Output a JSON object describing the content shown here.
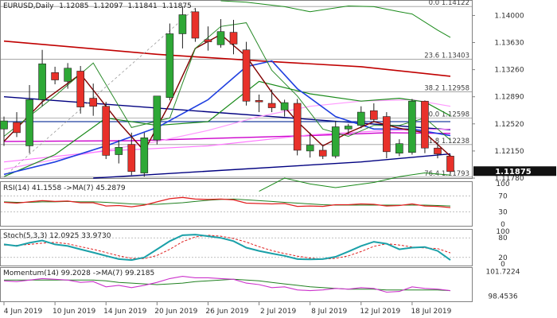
{
  "chart_data": {
    "type": "candlestick",
    "symbol_line": {
      "label": "EURUSD,Daily",
      "open": "1.12085",
      "high": "1.12097",
      "low": "1.11841",
      "close": "1.11875"
    },
    "price_axis": {
      "ylim": [
        1.1178,
        1.142
      ],
      "ticks": [
        "1.14000",
        "1.13630",
        "1.13260",
        "1.12890",
        "1.12520",
        "1.12150",
        "1.11780"
      ],
      "current_price": "1.11875"
    },
    "x_ticks": [
      "4 Jun 2019",
      "10 Jun 2019",
      "14 Jun 2019",
      "20 Jun 2019",
      "26 Jun 2019",
      "2 Jul 2019",
      "8 Jul 2019",
      "12 Jul 2019",
      "18 Jul 2019"
    ],
    "fibonacci": [
      {
        "label": "0.0 1.14122",
        "price": 1.14122
      },
      {
        "label": "23.6 1.13403",
        "price": 1.13403
      },
      {
        "label": "38.2 1.12958",
        "price": 1.12958
      },
      {
        "label": "50.0 1.12598",
        "price": 1.12598
      },
      {
        "label": "61.8 1.12238",
        "price": 1.12238
      },
      {
        "label": "76.4 1.11793",
        "price": 1.11793
      }
    ],
    "candles": [
      {
        "o": 1.1245,
        "h": 1.1262,
        "l": 1.1222,
        "c": 1.1256
      },
      {
        "o": 1.1254,
        "h": 1.1268,
        "l": 1.1234,
        "c": 1.124
      },
      {
        "o": 1.1222,
        "h": 1.1305,
        "l": 1.1212,
        "c": 1.1285
      },
      {
        "o": 1.1285,
        "h": 1.1353,
        "l": 1.1276,
        "c": 1.1334
      },
      {
        "o": 1.1322,
        "h": 1.133,
        "l": 1.1306,
        "c": 1.1312
      },
      {
        "o": 1.131,
        "h": 1.1335,
        "l": 1.13,
        "c": 1.1328
      },
      {
        "o": 1.1324,
        "h": 1.1331,
        "l": 1.1266,
        "c": 1.1275
      },
      {
        "o": 1.1287,
        "h": 1.1307,
        "l": 1.1263,
        "c": 1.1276
      },
      {
        "o": 1.1276,
        "h": 1.1282,
        "l": 1.1204,
        "c": 1.1209
      },
      {
        "o": 1.121,
        "h": 1.123,
        "l": 1.1198,
        "c": 1.122
      },
      {
        "o": 1.1224,
        "h": 1.124,
        "l": 1.1182,
        "c": 1.1187
      },
      {
        "o": 1.1185,
        "h": 1.124,
        "l": 1.118,
        "c": 1.1233
      },
      {
        "o": 1.123,
        "h": 1.129,
        "l": 1.1224,
        "c": 1.129
      },
      {
        "o": 1.1288,
        "h": 1.1389,
        "l": 1.1284,
        "c": 1.1375
      },
      {
        "o": 1.1375,
        "h": 1.1412,
        "l": 1.1355,
        "c": 1.1401
      },
      {
        "o": 1.1405,
        "h": 1.141,
        "l": 1.1364,
        "c": 1.1369
      },
      {
        "o": 1.1367,
        "h": 1.1385,
        "l": 1.1352,
        "c": 1.1364
      },
      {
        "o": 1.136,
        "h": 1.1395,
        "l": 1.1356,
        "c": 1.1378
      },
      {
        "o": 1.1377,
        "h": 1.1394,
        "l": 1.1347,
        "c": 1.1361
      },
      {
        "o": 1.1353,
        "h": 1.1364,
        "l": 1.1277,
        "c": 1.1283
      },
      {
        "o": 1.1284,
        "h": 1.1292,
        "l": 1.1268,
        "c": 1.1282
      },
      {
        "o": 1.128,
        "h": 1.1299,
        "l": 1.1268,
        "c": 1.1274
      },
      {
        "o": 1.1271,
        "h": 1.1285,
        "l": 1.1262,
        "c": 1.1281
      },
      {
        "o": 1.128,
        "h": 1.1286,
        "l": 1.1209,
        "c": 1.1216
      },
      {
        "o": 1.1215,
        "h": 1.124,
        "l": 1.1206,
        "c": 1.1223
      },
      {
        "o": 1.1216,
        "h": 1.1223,
        "l": 1.1204,
        "c": 1.1208
      },
      {
        "o": 1.1208,
        "h": 1.1256,
        "l": 1.1205,
        "c": 1.1248
      },
      {
        "o": 1.1245,
        "h": 1.1252,
        "l": 1.1238,
        "c": 1.1249
      },
      {
        "o": 1.125,
        "h": 1.1276,
        "l": 1.1246,
        "c": 1.1268
      },
      {
        "o": 1.127,
        "h": 1.128,
        "l": 1.1254,
        "c": 1.1258
      },
      {
        "o": 1.1262,
        "h": 1.1268,
        "l": 1.1205,
        "c": 1.1214
      },
      {
        "o": 1.1212,
        "h": 1.1231,
        "l": 1.1208,
        "c": 1.1225
      },
      {
        "o": 1.1213,
        "h": 1.1286,
        "l": 1.121,
        "c": 1.1283
      },
      {
        "o": 1.1283,
        "h": 1.1284,
        "l": 1.1212,
        "c": 1.1219
      },
      {
        "o": 1.1219,
        "h": 1.1226,
        "l": 1.1205,
        "c": 1.1211
      },
      {
        "o": 1.1208,
        "h": 1.121,
        "l": 1.1184,
        "c": 1.1187
      }
    ],
    "overlays": [
      {
        "color": "#c00000",
        "width": 1.6,
        "points": [
          [
            0,
            1.1365
          ],
          [
            12,
            1.1347
          ],
          [
            20,
            1.1338
          ],
          [
            28,
            1.133
          ],
          [
            35,
            1.1317
          ]
        ]
      },
      {
        "color": "#000080",
        "width": 1.4,
        "points": [
          [
            0,
            1.1289
          ],
          [
            35,
            1.1244
          ]
        ]
      },
      {
        "color": "#cc00cc",
        "width": 1.4,
        "points": [
          [
            0,
            1.1228
          ],
          [
            10,
            1.1229
          ],
          [
            18,
            1.1233
          ],
          [
            24,
            1.1236
          ],
          [
            30,
            1.124
          ],
          [
            35,
            1.1239
          ]
        ]
      },
      {
        "color": "#000080",
        "width": 1.4,
        "points": [
          [
            7,
            1.1178
          ],
          [
            28,
            1.12
          ],
          [
            35,
            1.1211
          ]
        ]
      },
      {
        "color": "#1f3f9f",
        "width": 1.2,
        "points": [
          [
            0,
            1.1255
          ],
          [
            35,
            1.1255
          ]
        ]
      },
      {
        "color": "#ff99ff",
        "width": 1.2,
        "points": [
          [
            0,
            1.119
          ],
          [
            6,
            1.121
          ],
          [
            12,
            1.1228
          ],
          [
            16,
            1.1243
          ],
          [
            20,
            1.1262
          ],
          [
            24,
            1.1276
          ],
          [
            28,
            1.1283
          ],
          [
            32,
            1.1285
          ],
          [
            35,
            1.1276
          ]
        ]
      },
      {
        "color": "#ff77ff",
        "width": 1.2,
        "points": [
          [
            0,
            1.12
          ],
          [
            8,
            1.1215
          ],
          [
            16,
            1.1222
          ],
          [
            24,
            1.1237
          ],
          [
            30,
            1.1243
          ],
          [
            35,
            1.1245
          ]
        ]
      },
      {
        "color": "#1a8a1a",
        "width": 1.2,
        "points": [
          [
            0,
            1.118
          ],
          [
            4,
            1.121
          ],
          [
            8,
            1.126
          ],
          [
            12,
            1.125
          ],
          [
            16,
            1.1255
          ],
          [
            20,
            1.131
          ],
          [
            24,
            1.1293
          ],
          [
            28,
            1.1283
          ],
          [
            31,
            1.1287
          ],
          [
            33,
            1.1282
          ],
          [
            35,
            1.1263
          ]
        ]
      },
      {
        "color": "#2040e0",
        "width": 1.6,
        "points": [
          [
            0,
            1.1183
          ],
          [
            4,
            1.12
          ],
          [
            8,
            1.1222
          ],
          [
            12,
            1.1247
          ],
          [
            16,
            1.1285
          ],
          [
            19,
            1.133
          ],
          [
            21,
            1.1338
          ],
          [
            23,
            1.13
          ],
          [
            26,
            1.1262
          ],
          [
            29,
            1.1245
          ],
          [
            32,
            1.1245
          ],
          [
            35,
            1.1236
          ]
        ]
      },
      {
        "color": "#800000",
        "width": 1.4,
        "points": [
          [
            0,
            1.1228
          ],
          [
            3,
            1.1282
          ],
          [
            6,
            1.132
          ],
          [
            9,
            1.1254
          ],
          [
            11,
            1.1215
          ],
          [
            13,
            1.128
          ],
          [
            15,
            1.1355
          ],
          [
            17,
            1.1374
          ],
          [
            19,
            1.1344
          ],
          [
            21,
            1.1295
          ],
          [
            23,
            1.1255
          ],
          [
            25,
            1.1222
          ],
          [
            27,
            1.124
          ],
          [
            29,
            1.1255
          ],
          [
            31,
            1.1246
          ],
          [
            33,
            1.124
          ],
          [
            35,
            1.1208
          ]
        ]
      },
      {
        "color": "#2a8a2a",
        "width": 1.0,
        "points": [
          [
            0,
            1.1235
          ],
          [
            4,
            1.129
          ],
          [
            7,
            1.1335
          ],
          [
            10,
            1.1247
          ],
          [
            13,
            1.126
          ],
          [
            15,
            1.1355
          ],
          [
            17,
            1.1385
          ],
          [
            19,
            1.139
          ],
          [
            21,
            1.1325
          ],
          [
            23,
            1.129
          ],
          [
            25,
            1.1245
          ],
          [
            27,
            1.1235
          ],
          [
            29,
            1.125
          ],
          [
            31,
            1.125
          ],
          [
            33,
            1.126
          ],
          [
            35,
            1.123
          ]
        ]
      },
      {
        "color": "#1a8a1a",
        "width": 1.0,
        "points": [
          [
            17,
            1.142
          ],
          [
            19,
            1.1418
          ],
          [
            22,
            1.1412
          ],
          [
            24,
            1.1405
          ],
          [
            27,
            1.1413
          ],
          [
            29,
            1.1412
          ],
          [
            31,
            1.1405
          ],
          [
            32,
            1.1402
          ],
          [
            34,
            1.138
          ],
          [
            35,
            1.137
          ]
        ]
      },
      {
        "color": "#1a8a1a",
        "width": 1.0,
        "points": [
          [
            20,
            1.116
          ],
          [
            22,
            1.1178
          ],
          [
            24,
            1.117
          ],
          [
            26,
            1.1165
          ],
          [
            29,
            1.1172
          ],
          [
            31,
            1.118
          ],
          [
            33,
            1.1185
          ],
          [
            35,
            1.1182
          ]
        ]
      }
    ],
    "trend_lines": [
      {
        "color": "#999999",
        "dash": "3,3",
        "points": [
          [
            0,
            1.118
          ],
          [
            15,
            1.141
          ]
        ]
      }
    ],
    "rsi": {
      "label": "RSI(14) 41.1558  ->MA(7) 45.2879",
      "ylim": [
        0,
        100
      ],
      "levels": [
        70,
        30
      ],
      "ticks": [
        "100",
        "70",
        "30",
        "0"
      ],
      "values": [
        54,
        52,
        55,
        58,
        56,
        57,
        53,
        53,
        45,
        46,
        43,
        47,
        55,
        63,
        66,
        62,
        61,
        62,
        60,
        52,
        51,
        50,
        51,
        44,
        45,
        44,
        48,
        48,
        50,
        49,
        45,
        46,
        50,
        45,
        44,
        41
      ],
      "ma_values": [
        55,
        54,
        54,
        55,
        55,
        56,
        55,
        55,
        54,
        52,
        50,
        49,
        49,
        51,
        53,
        56,
        59,
        61,
        62,
        60,
        58,
        56,
        54,
        52,
        50,
        48,
        47,
        47,
        47,
        47,
        47,
        47,
        47,
        47,
        46,
        45
      ]
    },
    "stoch": {
      "label": "Stoch(5,3,3) 12.0925  33.9730",
      "ylim": [
        0,
        100
      ],
      "levels": [
        80,
        20
      ],
      "ticks": [
        "100",
        "80",
        "20",
        "0"
      ],
      "k_values": [
        60,
        55,
        65,
        72,
        60,
        55,
        45,
        35,
        25,
        15,
        12,
        20,
        45,
        70,
        88,
        90,
        85,
        80,
        70,
        50,
        40,
        32,
        25,
        15,
        14,
        15,
        22,
        38,
        55,
        68,
        62,
        45,
        50,
        52,
        40,
        12
      ],
      "d_values": [
        58,
        57,
        60,
        64,
        66,
        62,
        53,
        45,
        35,
        25,
        17,
        16,
        26,
        45,
        68,
        83,
        88,
        85,
        78,
        67,
        53,
        41,
        32,
        24,
        18,
        15,
        17,
        25,
        38,
        54,
        62,
        58,
        52,
        49,
        47,
        34
      ]
    },
    "momentum": {
      "label": "Momentum(14) 99.2028  ->MA(7) 99.2185",
      "ylim": [
        98.0,
        102.0
      ],
      "ticks": [
        "101.7224",
        "98.4536"
      ],
      "values": [
        100.5,
        100.4,
        100.6,
        100.8,
        100.7,
        100.6,
        100.3,
        100.4,
        99.7,
        99.9,
        99.6,
        99.9,
        100.3,
        100.8,
        101.1,
        100.9,
        100.9,
        100.8,
        100.7,
        100.2,
        100.0,
        99.6,
        99.7,
        99.3,
        99.2,
        99.3,
        99.5,
        99.4,
        99.6,
        99.5,
        99.0,
        99.1,
        99.7,
        99.5,
        99.4,
        99.2
      ],
      "ma_values": [
        100.6,
        100.6,
        100.6,
        100.6,
        100.6,
        100.6,
        100.6,
        100.6,
        100.5,
        100.3,
        100.2,
        100.1,
        100.0,
        100.1,
        100.2,
        100.4,
        100.5,
        100.6,
        100.7,
        100.6,
        100.5,
        100.3,
        100.1,
        99.9,
        99.7,
        99.6,
        99.5,
        99.4,
        99.4,
        99.4,
        99.3,
        99.3,
        99.3,
        99.3,
        99.3,
        99.2
      ]
    },
    "colors": {
      "bull": "#2ea836",
      "bear": "#e8312a",
      "axis": "#606060",
      "text": "#303030"
    }
  }
}
